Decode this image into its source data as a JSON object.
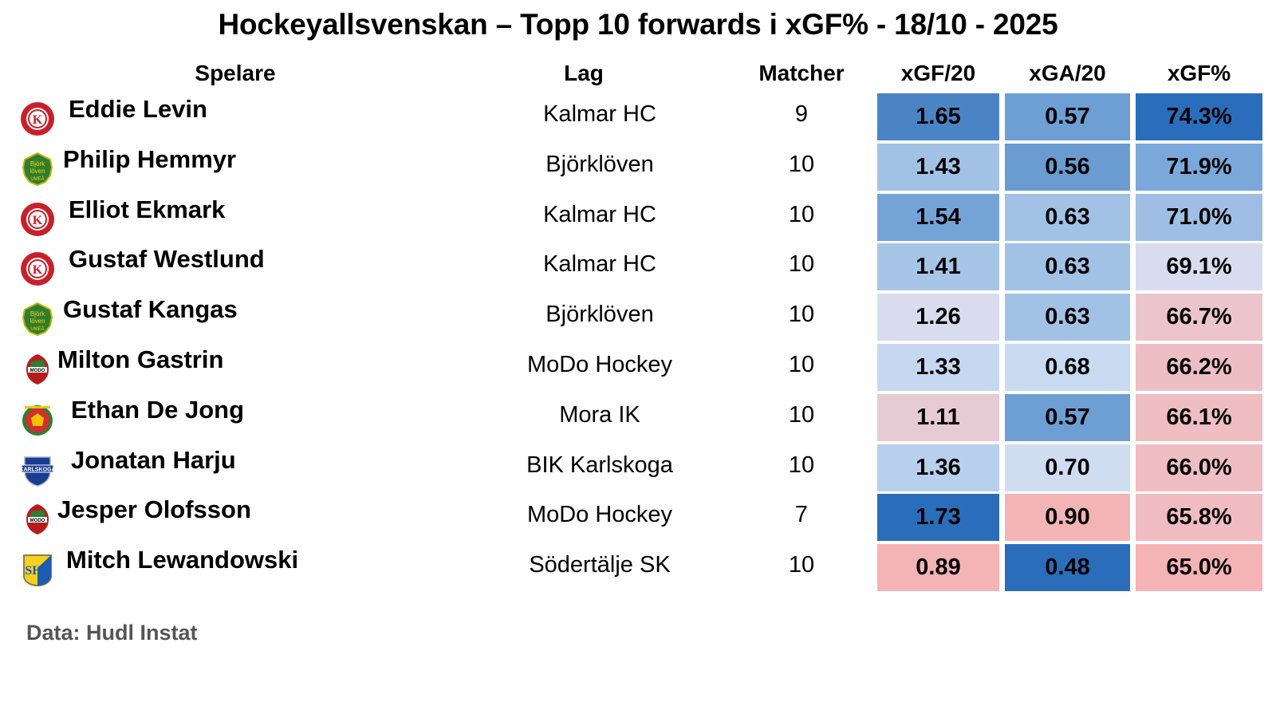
{
  "title": "Hockeyallsvenskan – Topp 10 forwards i xGF% - 18/10 - 2025",
  "headers": {
    "player": "Spelare",
    "team": "Lag",
    "games": "Matcher",
    "xgf20": "xGF/20",
    "xga20": "xGA/20",
    "xgfpct": "xGF%"
  },
  "footer": "Data: Hudl Instat",
  "colors": {
    "blue_dark": "#2a6ebb",
    "blue_mid": "#4f88c6",
    "blue_light": "#a3c1e4",
    "neutral": "#dcdcec",
    "red_light": "#f4b3b5"
  },
  "rows": [
    {
      "player": "Eddie Levin",
      "team": "Kalmar HC",
      "logo": "kalmar-hc-logo",
      "games": "9",
      "xgf20": "1.65",
      "xga20": "0.57",
      "xgfpct": "74.3%",
      "c1": "#4a84c4",
      "c2": "#6d9fd4",
      "c3": "#2a6ebb"
    },
    {
      "player": "Philip Hemmyr",
      "team": "Björklöven",
      "logo": "bjorkloven-logo",
      "games": "10",
      "xgf20": "1.43",
      "xga20": "0.56",
      "xgfpct": "71.9%",
      "c1": "#a2c2e5",
      "c2": "#6a9bd1",
      "c3": "#7ba8da"
    },
    {
      "player": "Elliot Ekmark",
      "team": "Kalmar HC",
      "logo": "kalmar-hc-logo",
      "games": "10",
      "xgf20": "1.54",
      "xga20": "0.63",
      "xgfpct": "71.0%",
      "c1": "#74a3d7",
      "c2": "#a2c2e5",
      "c3": "#9ebfe3"
    },
    {
      "player": "Gustaf Westlund",
      "team": "Kalmar HC",
      "logo": "kalmar-hc-logo",
      "games": "10",
      "xgf20": "1.41",
      "xga20": "0.63",
      "xgfpct": "69.1%",
      "c1": "#a7c5e6",
      "c2": "#a2c2e5",
      "c3": "#d8dcee"
    },
    {
      "player": "Gustaf Kangas",
      "team": "Björklöven",
      "logo": "bjorkloven-logo",
      "games": "10",
      "xgf20": "1.26",
      "xga20": "0.63",
      "xgfpct": "66.7%",
      "c1": "#d9dcee",
      "c2": "#a2c2e5",
      "c3": "#ebc5cb"
    },
    {
      "player": "Milton Gastrin",
      "team": "MoDo Hockey",
      "logo": "modo-hockey-logo",
      "games": "10",
      "xgf20": "1.33",
      "xga20": "0.68",
      "xgfpct": "66.2%",
      "c1": "#c5d8f0",
      "c2": "#c8daf0",
      "c3": "#edbfc5"
    },
    {
      "player": "Ethan De Jong",
      "team": "Mora IK",
      "logo": "mora-ik-logo",
      "games": "10",
      "xgf20": "1.11",
      "xga20": "0.57",
      "xgfpct": "66.1%",
      "c1": "#e6cbd5",
      "c2": "#6d9fd4",
      "c3": "#eebec3"
    },
    {
      "player": "Jonatan Harju",
      "team": "BIK Karlskoga",
      "logo": "bik-karlskoga-logo",
      "games": "10",
      "xgf20": "1.36",
      "xga20": "0.70",
      "xgfpct": "66.0%",
      "c1": "#b8d0ed",
      "c2": "#d0ddf1",
      "c3": "#efbec3"
    },
    {
      "player": "Jesper Olofsson",
      "team": "MoDo Hockey",
      "logo": "modo-hockey-logo",
      "games": "7",
      "xgf20": "1.73",
      "xga20": "0.90",
      "xgfpct": "65.8%",
      "c1": "#2a6ebb",
      "c2": "#f4b3b5",
      "c3": "#f0bcc1"
    },
    {
      "player": "Mitch Lewandowski",
      "team": "Södertälje SK",
      "logo": "sodertalje-sk-logo",
      "games": "10",
      "xgf20": "0.89",
      "xga20": "0.48",
      "xgfpct": "65.0%",
      "c1": "#f4b3b5",
      "c2": "#2a6ebb",
      "c3": "#f4b3b5"
    }
  ],
  "chart_data": {
    "type": "table",
    "title": "Hockeyallsvenskan – Topp 10 forwards i xGF% - 18/10 - 2025",
    "columns": [
      "Spelare",
      "Lag",
      "Matcher",
      "xGF/20",
      "xGA/20",
      "xGF%"
    ],
    "rows": [
      [
        "Eddie Levin",
        "Kalmar HC",
        9,
        1.65,
        0.57,
        74.3
      ],
      [
        "Philip Hemmyr",
        "Björklöven",
        10,
        1.43,
        0.56,
        71.9
      ],
      [
        "Elliot Ekmark",
        "Kalmar HC",
        10,
        1.54,
        0.63,
        71.0
      ],
      [
        "Gustaf Westlund",
        "Kalmar HC",
        10,
        1.41,
        0.63,
        69.1
      ],
      [
        "Gustaf Kangas",
        "Björklöven",
        10,
        1.26,
        0.63,
        66.7
      ],
      [
        "Milton Gastrin",
        "MoDo Hockey",
        10,
        1.33,
        0.68,
        66.2
      ],
      [
        "Ethan De Jong",
        "Mora IK",
        10,
        1.11,
        0.57,
        66.1
      ],
      [
        "Jonatan Harju",
        "BIK Karlskoga",
        10,
        1.36,
        0.7,
        66.0
      ],
      [
        "Jesper Olofsson",
        "MoDo Hockey",
        7,
        1.73,
        0.9,
        65.8
      ],
      [
        "Mitch Lewandowski",
        "Södertälje SK",
        10,
        0.89,
        0.48,
        65.0
      ]
    ],
    "heatmap": "blue = better, red = worse (per column)",
    "source": "Data: Hudl Instat"
  }
}
